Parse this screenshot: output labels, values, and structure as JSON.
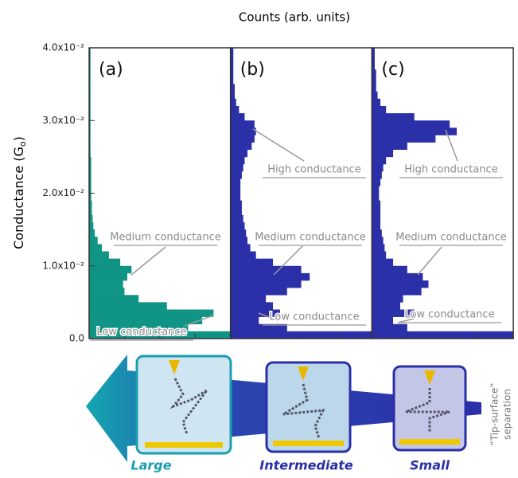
{
  "chart_data": {
    "type": "histogram",
    "orientation": "horizontal",
    "x_label": "Counts (arb. units)",
    "y_label": {
      "main": "Conductance (G",
      "sub": "o",
      "end": ")"
    },
    "bins": [
      0,
      0.001,
      0.002,
      0.003,
      0.004,
      0.005,
      0.006,
      0.007,
      0.008,
      0.009,
      0.01,
      0.011,
      0.012,
      0.013,
      0.014,
      0.015,
      0.016,
      0.017,
      0.018,
      0.019,
      0.02,
      0.021,
      0.022,
      0.023,
      0.024,
      0.025,
      0.026,
      0.027,
      0.028,
      0.029,
      0.03,
      0.031,
      0.032,
      0.033,
      0.034,
      0.035,
      0.036,
      0.037,
      0.038,
      0.039,
      0.04
    ],
    "xlim": [
      0,
      100
    ],
    "ylim": [
      0,
      0.04
    ],
    "yticks": [
      {
        "value": 0,
        "label": "0.0"
      },
      {
        "value": 0.01,
        "label": "1.0x10⁻²"
      },
      {
        "value": 0.02,
        "label": "2.0x10⁻²"
      },
      {
        "value": 0.03,
        "label": "3.0x10⁻²"
      },
      {
        "value": 0.04,
        "label": "4.0x10⁻²"
      }
    ],
    "series": [
      {
        "name": "(a)",
        "color": "#0f9486",
        "annotations": [
          "Medium conductance",
          "Low conductance"
        ],
        "values": [
          100,
          70,
          80,
          88,
          55,
          35,
          25,
          24,
          27,
          30,
          22,
          14,
          9,
          6,
          4,
          3,
          2.5,
          2,
          2,
          1.5,
          1.5,
          1.5,
          1.5,
          1.5,
          1.5,
          1,
          1,
          1,
          1,
          1,
          1,
          1,
          1,
          1,
          1,
          1,
          1,
          1,
          1,
          1
        ]
      },
      {
        "name": "(b)",
        "color": "#2b2fa8",
        "annotations": [
          "High conductance",
          "Medium conductance",
          "Low conductance"
        ],
        "values": [
          100,
          40,
          20,
          35,
          30,
          25,
          40,
          50,
          56,
          50,
          30,
          18,
          14,
          12,
          11,
          10,
          9,
          8,
          8,
          7,
          7,
          7,
          8,
          9,
          10,
          12,
          15,
          17,
          18,
          17,
          10,
          6,
          4,
          3,
          3,
          2,
          2,
          2,
          2,
          2
        ]
      },
      {
        "name": "(c)",
        "color": "#2b2fa8",
        "annotations": [
          "High conductance",
          "Medium conductance",
          "Low conductance"
        ],
        "values": [
          100,
          25,
          15,
          30,
          20,
          22,
          35,
          40,
          36,
          25,
          15,
          10,
          9,
          8,
          7,
          6,
          6,
          6,
          6,
          5,
          5,
          6,
          7,
          8,
          10,
          15,
          25,
          45,
          60,
          55,
          30,
          10,
          6,
          4,
          3,
          3,
          3,
          2,
          2,
          2
        ]
      }
    ]
  },
  "schematic": {
    "labels": [
      "Large",
      "Intermediate",
      "Small"
    ],
    "axis_label": [
      "“Tip-surface”",
      "separation"
    ]
  }
}
